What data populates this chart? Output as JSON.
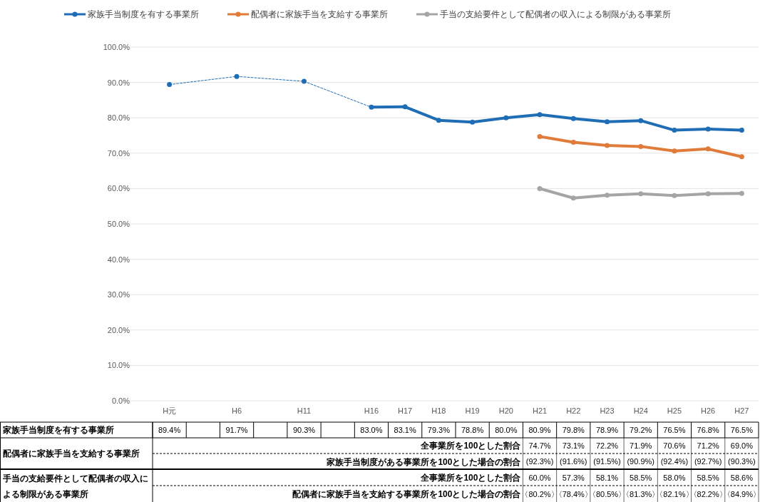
{
  "chart_data": {
    "type": "line",
    "categories": [
      "H元",
      null,
      "H6",
      null,
      "H11",
      null,
      "H16",
      "H17",
      "H18",
      "H19",
      "H20",
      "H21",
      "H22",
      "H23",
      "H24",
      "H25",
      "H26",
      "H27"
    ],
    "series": [
      {
        "name": "家族手当制度を有する事業所",
        "color": "#1f6db5",
        "values": [
          89.4,
          null,
          91.7,
          null,
          90.3,
          null,
          83.0,
          83.1,
          79.3,
          78.8,
          80.0,
          80.9,
          79.8,
          78.9,
          79.2,
          76.5,
          76.8,
          76.5
        ],
        "value_labels": [
          "89.4%",
          null,
          "91.7%",
          null,
          "90.3%",
          null,
          "83.0%",
          "83.1%",
          "79.3%",
          "78.8%",
          "80.0%",
          "80.9%",
          "79.8%",
          "78.9%",
          "79.2%",
          "76.5%",
          "76.8%",
          "76.5%"
        ]
      },
      {
        "name": "配偶者に家族手当を支給する事業所",
        "color": "#e07b39",
        "values": [
          null,
          null,
          null,
          null,
          null,
          null,
          null,
          null,
          null,
          null,
          null,
          74.7,
          73.1,
          72.2,
          71.9,
          70.6,
          71.2,
          69.0
        ],
        "value_labels": [
          null,
          null,
          null,
          null,
          null,
          null,
          null,
          null,
          null,
          null,
          null,
          "74.7%",
          "73.1%",
          "72.2%",
          "71.9%",
          "70.6%",
          "71.2%",
          "69.0%"
        ]
      },
      {
        "name": "手当の支給要件として配偶者の収入による制限がある事業所",
        "color": "#a5a5a5",
        "values": [
          null,
          null,
          null,
          null,
          null,
          null,
          null,
          null,
          null,
          null,
          null,
          60.0,
          57.3,
          58.1,
          58.5,
          58.0,
          58.5,
          58.6
        ],
        "value_labels": [
          null,
          null,
          null,
          null,
          null,
          null,
          null,
          null,
          null,
          null,
          null,
          "60.0%",
          "57.3%",
          "58.1%",
          "58.5%",
          "58.0%",
          "58.5%",
          "58.6%"
        ]
      }
    ],
    "ylim": [
      0,
      100
    ],
    "yticks": [
      {
        "value": 0,
        "label": "0.0%"
      },
      {
        "value": 10,
        "label": "10.0%"
      },
      {
        "value": 20,
        "label": "20.0%"
      },
      {
        "value": 30,
        "label": "30.0%"
      },
      {
        "value": 40,
        "label": "40.0%"
      },
      {
        "value": 50,
        "label": "50.0%"
      },
      {
        "value": 60,
        "label": "60.0%"
      },
      {
        "value": 70,
        "label": "70.0%"
      },
      {
        "value": 80,
        "label": "80.0%"
      },
      {
        "value": 90,
        "label": "90.0%"
      },
      {
        "value": 100,
        "label": "100.0%"
      }
    ],
    "grid": "y",
    "legend": "top",
    "marker": "circle",
    "annotations": [
      "全事業所を100とした割合",
      "家族手当制度がある事業所を100とした場合の割合",
      "(92.3%)",
      "(91.6%)",
      "(91.5%)",
      "(90.9%)",
      "(92.4%)",
      "(92.7%)",
      "(90.3%)",
      "全事業所を100とした割合",
      "配偶者に家族手当を支給する事業所を100とした場合の割合",
      "〈80.2%〉",
      "〈78.4%〉",
      "〈80.5%〉",
      "〈81.3%〉",
      "〈82.1%〉",
      "〈82.2%〉",
      "〈84.9%〉"
    ]
  }
}
